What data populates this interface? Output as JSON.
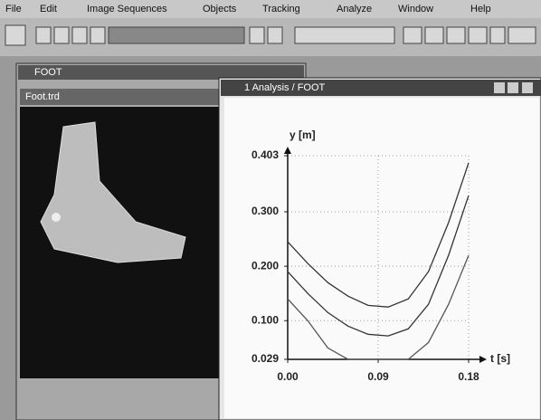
{
  "menu": [
    "File",
    "Edit",
    "Image Sequences",
    "Objects",
    "Tracking",
    "Analyze",
    "Window",
    "Help"
  ],
  "windows": {
    "foot": {
      "title": "FOOT",
      "child_title": "Foot.trd"
    },
    "analysis": {
      "title": "1 Analysis / FOOT"
    }
  },
  "chart_data": {
    "type": "line",
    "ylabel": "y [m]",
    "xlabel": "t [s]",
    "x": [
      0,
      0.02,
      0.04,
      0.06,
      0.08,
      0.1,
      0.12,
      0.14,
      0.16,
      0.18
    ],
    "series": [
      {
        "color": "#333333",
        "values": [
          0.245,
          0.205,
          0.17,
          0.145,
          0.128,
          0.125,
          0.14,
          0.19,
          0.28,
          0.39
        ]
      },
      {
        "color": "#333333",
        "values": [
          0.19,
          0.15,
          0.115,
          0.09,
          0.075,
          0.072,
          0.085,
          0.13,
          0.22,
          0.33
        ]
      },
      {
        "color": "#555555",
        "values": [
          0.14,
          0.1,
          0.05,
          0.029,
          0.029,
          0.029,
          0.029,
          0.06,
          0.13,
          0.22
        ]
      }
    ],
    "xlim": [
      0,
      0.18
    ],
    "ylim": [
      0.029,
      0.403
    ],
    "xticks": [
      {
        "value": 0,
        "label": "0.00"
      },
      {
        "value": 0.09,
        "label": "0.09"
      },
      {
        "value": 0.18,
        "label": "0.18"
      }
    ],
    "yticks": [
      {
        "value": 0.029,
        "label": "0.029"
      },
      {
        "value": 0.1,
        "label": "0.100"
      },
      {
        "value": 0.2,
        "label": "0.200"
      },
      {
        "value": 0.3,
        "label": "0.300"
      },
      {
        "value": 0.403,
        "label": "0.403"
      }
    ],
    "grid": true
  }
}
